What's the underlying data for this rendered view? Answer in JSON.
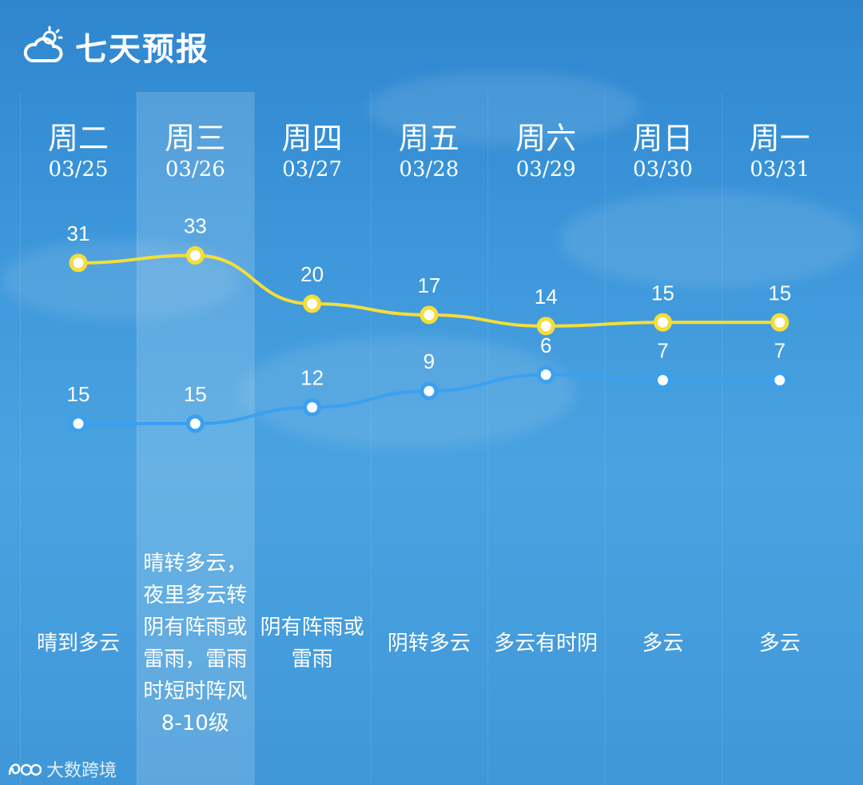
{
  "header": {
    "title": "七天预报",
    "icon": "partly-cloudy-icon"
  },
  "days": [
    {
      "weekday": "周二",
      "date": "03/25",
      "high": 31,
      "low": 15,
      "desc": "晴到多云"
    },
    {
      "weekday": "周三",
      "date": "03/26",
      "high": 33,
      "low": 15,
      "desc": "晴转多云，夜里多云转阴有阵雨或雷雨，雷雨时短时阵风8-10级"
    },
    {
      "weekday": "周四",
      "date": "03/27",
      "high": 20,
      "low": 12,
      "desc": "阴有阵雨或雷雨"
    },
    {
      "weekday": "周五",
      "date": "03/28",
      "high": 17,
      "low": 9,
      "desc": "阴转多云"
    },
    {
      "weekday": "周六",
      "date": "03/29",
      "high": 14,
      "low": 6,
      "desc": "多云有时阴"
    },
    {
      "weekday": "周日",
      "date": "03/30",
      "high": 15,
      "low": 7,
      "desc": "多云"
    },
    {
      "weekday": "周一",
      "date": "03/31",
      "high": 15,
      "low": 7,
      "desc": "多云"
    }
  ],
  "chart_data": {
    "type": "line",
    "categories": [
      "03/25",
      "03/26",
      "03/27",
      "03/28",
      "03/29",
      "03/30",
      "03/31"
    ],
    "series": [
      {
        "values": [
          31,
          33,
          20,
          17,
          14,
          15,
          15
        ],
        "color": "#f5dd3a"
      },
      {
        "values": [
          15,
          15,
          12,
          9,
          6,
          7,
          7
        ],
        "color": "#3aa0f0"
      }
    ]
  },
  "highlight_day": "03/26",
  "watermark": {
    "text": "大数跨境",
    "logo": "logo-icon"
  }
}
